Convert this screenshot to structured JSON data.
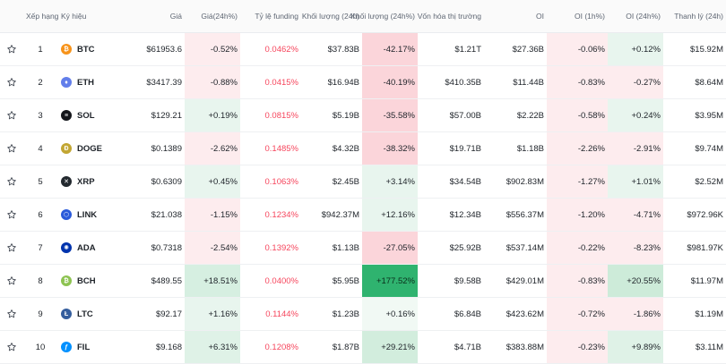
{
  "header": {
    "rank": "Xếp hạng",
    "symbol": "Ký hiệu",
    "price": "Giá",
    "price_change": "Giá(24h%)",
    "funding": "Tỷ lệ funding",
    "volume": "Khối lượng (24h)",
    "volume_change": "Khối lượng (24h%)",
    "market_cap": "Vốn hóa thị trường",
    "oi": "OI",
    "oi_1h": "OI (1h%)",
    "oi_24h": "OI (24h%)",
    "liquidation": "Thanh lý (24h)"
  },
  "colors": {
    "up_bg_light": "#e8f5ee",
    "up_bg_mid": "#cdebd9",
    "up_bg_strong": "#2fb36f",
    "down_bg_light": "#fdecee",
    "down_bg_mid": "#fbd5da",
    "funding_red": "#f6465d"
  },
  "rows": [
    {
      "rank": "1",
      "symbol": "BTC",
      "icon": "btc-icon",
      "icon_color": "#f7931a",
      "glyph": "₿",
      "price": "$61953.6",
      "price_change": "-0.52%",
      "price_bg": "#fdecee",
      "funding": "0.0462%",
      "volume": "$37.83B",
      "volume_change": "-42.17%",
      "volume_bg": "#fbd5da",
      "market_cap": "$1.21T",
      "oi": "$27.36B",
      "oi_1h": "-0.06%",
      "oi_1h_bg": "#fdecee",
      "oi_24h": "+0.12%",
      "oi_24h_bg": "#e8f5ee",
      "liquidation": "$15.92M"
    },
    {
      "rank": "2",
      "symbol": "ETH",
      "icon": "eth-icon",
      "icon_color": "#627eea",
      "glyph": "♦",
      "price": "$3417.39",
      "price_change": "-0.88%",
      "price_bg": "#fdecee",
      "funding": "0.0415%",
      "volume": "$16.94B",
      "volume_change": "-40.19%",
      "volume_bg": "#fbd5da",
      "market_cap": "$410.35B",
      "oi": "$11.44B",
      "oi_1h": "-0.83%",
      "oi_1h_bg": "#fdecee",
      "oi_24h": "-0.27%",
      "oi_24h_bg": "#fdecee",
      "liquidation": "$8.64M"
    },
    {
      "rank": "3",
      "symbol": "SOL",
      "icon": "sol-icon",
      "icon_color": "#14161b",
      "glyph": "≡",
      "price": "$129.21",
      "price_change": "+0.19%",
      "price_bg": "#e8f5ee",
      "funding": "0.0815%",
      "volume": "$5.19B",
      "volume_change": "-35.58%",
      "volume_bg": "#fbd5da",
      "market_cap": "$57.00B",
      "oi": "$2.22B",
      "oi_1h": "-0.58%",
      "oi_1h_bg": "#fdecee",
      "oi_24h": "+0.24%",
      "oi_24h_bg": "#e8f5ee",
      "liquidation": "$3.95M"
    },
    {
      "rank": "4",
      "symbol": "DOGE",
      "icon": "doge-icon",
      "icon_color": "#c2a633",
      "glyph": "Ð",
      "price": "$0.1389",
      "price_change": "-2.62%",
      "price_bg": "#fdecee",
      "funding": "0.1485%",
      "volume": "$4.32B",
      "volume_change": "-38.32%",
      "volume_bg": "#fbd5da",
      "market_cap": "$19.71B",
      "oi": "$1.18B",
      "oi_1h": "-2.26%",
      "oi_1h_bg": "#fdecee",
      "oi_24h": "-2.91%",
      "oi_24h_bg": "#fdecee",
      "liquidation": "$9.74M"
    },
    {
      "rank": "5",
      "symbol": "XRP",
      "icon": "xrp-icon",
      "icon_color": "#23292f",
      "glyph": "✕",
      "price": "$0.6309",
      "price_change": "+0.45%",
      "price_bg": "#e8f5ee",
      "funding": "0.1063%",
      "volume": "$2.45B",
      "volume_change": "+3.14%",
      "volume_bg": "#e8f5ee",
      "market_cap": "$34.54B",
      "oi": "$902.83M",
      "oi_1h": "-1.27%",
      "oi_1h_bg": "#fdecee",
      "oi_24h": "+1.01%",
      "oi_24h_bg": "#e8f5ee",
      "liquidation": "$2.52M"
    },
    {
      "rank": "6",
      "symbol": "LINK",
      "icon": "link-icon",
      "icon_color": "#2a5ada",
      "glyph": "⬡",
      "price": "$21.038",
      "price_change": "-1.15%",
      "price_bg": "#fdecee",
      "funding": "0.1234%",
      "volume": "$942.37M",
      "volume_change": "+12.16%",
      "volume_bg": "#e8f5ee",
      "market_cap": "$12.34B",
      "oi": "$556.37M",
      "oi_1h": "-1.20%",
      "oi_1h_bg": "#fdecee",
      "oi_24h": "-4.71%",
      "oi_24h_bg": "#fdecee",
      "liquidation": "$972.96K"
    },
    {
      "rank": "7",
      "symbol": "ADA",
      "icon": "ada-icon",
      "icon_color": "#0033ad",
      "glyph": "✺",
      "price": "$0.7318",
      "price_change": "-2.54%",
      "price_bg": "#fdecee",
      "funding": "0.1392%",
      "volume": "$1.13B",
      "volume_change": "-27.05%",
      "volume_bg": "#fbd5da",
      "market_cap": "$25.92B",
      "oi": "$537.14M",
      "oi_1h": "-0.22%",
      "oi_1h_bg": "#fdecee",
      "oi_24h": "-8.23%",
      "oi_24h_bg": "#fdecee",
      "liquidation": "$981.97K"
    },
    {
      "rank": "8",
      "symbol": "BCH",
      "icon": "bch-icon",
      "icon_color": "#8dc351",
      "glyph": "₿",
      "price": "$489.55",
      "price_change": "+18.51%",
      "price_bg": "#d6efe1",
      "funding": "0.0400%",
      "volume": "$5.95B",
      "volume_change": "+177.52%",
      "volume_bg": "#2fb36f",
      "market_cap": "$9.58B",
      "oi": "$429.01M",
      "oi_1h": "-0.83%",
      "oi_1h_bg": "#fdecee",
      "oi_24h": "+20.55%",
      "oi_24h_bg": "#cdebd9",
      "liquidation": "$11.97M"
    },
    {
      "rank": "9",
      "symbol": "LTC",
      "icon": "ltc-icon",
      "icon_color": "#345d9d",
      "glyph": "Ł",
      "price": "$92.17",
      "price_change": "+1.16%",
      "price_bg": "#e8f5ee",
      "funding": "0.1144%",
      "volume": "$1.23B",
      "volume_change": "+0.16%",
      "volume_bg": "#f1f9f4",
      "market_cap": "$6.84B",
      "oi": "$423.62M",
      "oi_1h": "-0.72%",
      "oi_1h_bg": "#fdecee",
      "oi_24h": "-1.86%",
      "oi_24h_bg": "#fdecee",
      "liquidation": "$1.19M"
    },
    {
      "rank": "10",
      "symbol": "FIL",
      "icon": "fil-icon",
      "icon_color": "#0090ff",
      "glyph": "ƒ",
      "price": "$9.168",
      "price_change": "+6.31%",
      "price_bg": "#dff2e7",
      "funding": "0.1208%",
      "volume": "$1.87B",
      "volume_change": "+29.21%",
      "volume_bg": "#d2eddd",
      "market_cap": "$4.71B",
      "oi": "$383.88M",
      "oi_1h": "-0.23%",
      "oi_1h_bg": "#fdecee",
      "oi_24h": "+9.89%",
      "oi_24h_bg": "#dff2e7",
      "liquidation": "$3.11M"
    }
  ]
}
